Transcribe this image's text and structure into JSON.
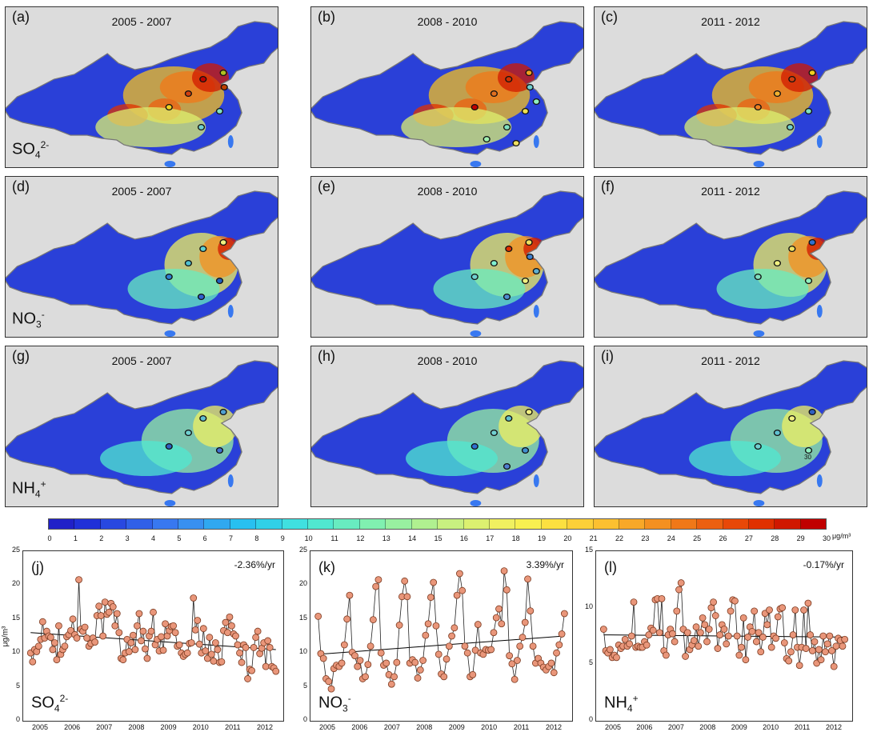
{
  "maps": [
    {
      "label": "(a)",
      "period": "2005 - 2007",
      "species": {
        "base": "SO",
        "sub": "4",
        "sup": "2-"
      },
      "showSpecies": true,
      "kind": "so4",
      "sites": [
        "#c00000",
        "#d04010",
        "#b0c020",
        "#f0d020",
        "#80e0c0",
        "#70d0d0",
        "#c04000"
      ]
    },
    {
      "label": "(b)",
      "period": "2008 - 2010",
      "kind": "so4",
      "sites": [
        "#d03000",
        "#e07020",
        "#f0a020",
        "#c00000",
        "#f0e050",
        "#80e0c0",
        "#70d0d0",
        "#90f0c0",
        "#f0e060",
        "#a0f0b0"
      ]
    },
    {
      "label": "(c)",
      "period": "2011 - 2012",
      "kind": "so4",
      "sites": [
        "#d04010",
        "#f0b030",
        "#f0d020",
        "#f08020",
        "#80e0c0",
        "#70d0d0"
      ]
    },
    {
      "label": "(d)",
      "period": "2005 - 2007",
      "species": {
        "base": "NO",
        "sub": "3",
        "sup": "-"
      },
      "showSpecies": true,
      "kind": "no3",
      "sites": [
        "#60d0d0",
        "#50c0d0",
        "#f0f080",
        "#3080d0",
        "#2060c0",
        "#3060d0"
      ]
    },
    {
      "label": "(e)",
      "period": "2008 - 2010",
      "kind": "no3",
      "sites": [
        "#e03000",
        "#80f0d0",
        "#f0e060",
        "#70d0d0",
        "#f0f080",
        "#5090d0",
        "#4080d0",
        "#60b0d0"
      ]
    },
    {
      "label": "(f)",
      "period": "2011 - 2012",
      "kind": "no3",
      "sites": [
        "#f0e060",
        "#f0f080",
        "#3070d0",
        "#80e0c0",
        "#90f0c0"
      ]
    },
    {
      "label": "(g)",
      "period": "2005 - 2007",
      "species": {
        "base": "NH",
        "sub": "4",
        "sup": "+"
      },
      "showSpecies": true,
      "kind": "nh4",
      "sites": [
        "#60c0d0",
        "#70d0d0",
        "#50a0d0",
        "#3060c0",
        "#4070d0"
      ]
    },
    {
      "label": "(h)",
      "period": "2008 - 2010",
      "kind": "nh4",
      "sites": [
        "#60c0d0",
        "#70d0d0",
        "#f0f080",
        "#3070d0",
        "#4090d0",
        "#5080d0"
      ]
    },
    {
      "label": "(i)",
      "period": "2011 - 2012",
      "kind": "nh4",
      "sites": [
        "#f0f080",
        "#60c0d0",
        "#3060c0",
        "#70d0d0",
        "#90f0c0"
      ],
      "note": "30"
    }
  ],
  "colorbar": {
    "ticks": [
      "0",
      "1",
      "2",
      "3",
      "4",
      "5",
      "6",
      "7",
      "8",
      "9",
      "10",
      "11",
      "12",
      "13",
      "14",
      "15",
      "16",
      "17",
      "18",
      "19",
      "20",
      "21",
      "22",
      "23",
      "24",
      "25",
      "26",
      "27",
      "28",
      "29",
      "30"
    ],
    "colors": [
      "#2020c8",
      "#2030d8",
      "#2848e0",
      "#3060e8",
      "#3878f0",
      "#3890f0",
      "#30a8f0",
      "#28c0f0",
      "#30d0e8",
      "#40e0e0",
      "#50e8d0",
      "#68ecc0",
      "#80f0b0",
      "#98f0a0",
      "#b0f090",
      "#c8f080",
      "#dcf070",
      "#f0f060",
      "#f8f050",
      "#fce040",
      "#fcd038",
      "#fcc030",
      "#f8a828",
      "#f49020",
      "#f07818",
      "#ec6010",
      "#e84808",
      "#e03000",
      "#d01800",
      "#c00000"
    ],
    "unit": "μg/m³"
  },
  "chart_data": [
    {
      "type": "scatter",
      "label": "(j)",
      "species": {
        "base": "SO",
        "sub": "4",
        "sup": "2-"
      },
      "trend": "-2.36%/yr",
      "ylabel": "μg/m³",
      "ylim": [
        0,
        25
      ],
      "yticks": [
        "0",
        "5",
        "10",
        "15",
        "20",
        "25"
      ],
      "xticks": [
        "2005",
        "2006",
        "2007",
        "2008",
        "2009",
        "2010",
        "2011",
        "2012"
      ],
      "trendline": [
        13.0,
        10.5
      ],
      "values": [
        10,
        8.7,
        10.5,
        10.2,
        11,
        12,
        14.6,
        12.2,
        13.2,
        12.5,
        12.3,
        10.5,
        11.5,
        9,
        14,
        9.8,
        10.5,
        11,
        12.4,
        12.7,
        13.3,
        15,
        12.7,
        12.2,
        20.8,
        13.5,
        13.2,
        13.8,
        12.2,
        11,
        11.4,
        12.2,
        11.6,
        15.5,
        16.9,
        15.5,
        12.5,
        17.5,
        15.7,
        16,
        17.3,
        16.8,
        14,
        15.8,
        13,
        9.2,
        9,
        10,
        12,
        10.2,
        11.5,
        12.6,
        10.5,
        14,
        15.8,
        11.8,
        13.2,
        10.6,
        9.2,
        12.5,
        13.2,
        16,
        11.2,
        12,
        10.3,
        12.4,
        10.4,
        14.3,
        12.5,
        13.3,
        13.9,
        14,
        13,
        11,
        11.2,
        10,
        9.5,
        9.8,
        10,
        11.4,
        11.5,
        18.1,
        13.4,
        14.8,
        11.3,
        10,
        13.6,
        10.3,
        9.2,
        12.3,
        9.8,
        8.8,
        11.5,
        10.5,
        8.6,
        8.7,
        13.3,
        14.5,
        13,
        15.3,
        14,
        12.8,
        12.5,
        11.2,
        10,
        8.6,
        11.2,
        10.8,
        6.2,
        7.6,
        7.4,
        10.8,
        12.3,
        13.2,
        9.9,
        10.7,
        11.5,
        8,
        11.8,
        10.8,
        8,
        7.8,
        7.3
      ]
    },
    {
      "type": "scatter",
      "label": "(k)",
      "species": {
        "base": "NO",
        "sub": "3",
        "sup": "-"
      },
      "trend": "3.39%/yr",
      "ylim": [
        0,
        25
      ],
      "yticks": [
        "0",
        "5",
        "10",
        "15",
        "20",
        "25"
      ],
      "xticks": [
        "2005",
        "2006",
        "2007",
        "2008",
        "2009",
        "2010",
        "2011",
        "2012"
      ],
      "trendline": [
        9.8,
        12.5
      ],
      "values": [
        15.4,
        9.9,
        9.2,
        6.2,
        5.8,
        4.7,
        7.7,
        8.2,
        8,
        8.5,
        11.2,
        15,
        18.5,
        10.1,
        9.6,
        8,
        8.9,
        6.2,
        6.5,
        8.3,
        11,
        14.9,
        19.8,
        20.8,
        10,
        8.2,
        8.5,
        6.8,
        5.4,
        6.5,
        8.6,
        14.1,
        18.3,
        20.6,
        18.3,
        8.5,
        9,
        8.6,
        6.3,
        7.5,
        8.9,
        12.6,
        14.3,
        18.2,
        20.4,
        14,
        9.8,
        6.9,
        6.5,
        9.1,
        11,
        12.5,
        13.7,
        18.5,
        21.7,
        19.2,
        11,
        10,
        6.5,
        6.8,
        10.4,
        14.2,
        10,
        9.8,
        10.5,
        10.4,
        10.5,
        13,
        15.2,
        16.5,
        14.3,
        22.1,
        19.3,
        9.6,
        8.4,
        6.1,
        8.9,
        11,
        12.3,
        14.5,
        20.9,
        16.2,
        11,
        8.5,
        9.2,
        8.5,
        7.9,
        7.5,
        8,
        8.5,
        7.1,
        10,
        11.2,
        12.8,
        15.8
      ]
    },
    {
      "type": "scatter",
      "label": "(l)",
      "species": {
        "base": "NH",
        "sub": "4",
        "sup": "+"
      },
      "trend": "-0.17%/yr",
      "ylim": [
        0,
        15
      ],
      "yticks": [
        "0",
        "5",
        "10",
        "15"
      ],
      "xticks": [
        "2005",
        "2006",
        "2007",
        "2008",
        "2009",
        "2010",
        "2011",
        "2012"
      ],
      "trendline": [
        7.6,
        7.4
      ],
      "values": [
        8.1,
        6.2,
        6,
        6.3,
        5.6,
        5.8,
        5.6,
        6.7,
        6.4,
        6.6,
        7.2,
        6.6,
        6.8,
        7.5,
        10.5,
        6.5,
        6.6,
        6.5,
        6.5,
        7,
        6.7,
        7.6,
        8.2,
        8,
        10.7,
        10.8,
        7.8,
        10.8,
        6.2,
        5.8,
        7.6,
        8.1,
        7.7,
        7,
        9.7,
        11.6,
        12.2,
        8.1,
        5.7,
        7.8,
        6.3,
        6.7,
        7.1,
        8.3,
        6.6,
        7.8,
        9.1,
        8.5,
        7,
        8.1,
        10,
        10.5,
        9.3,
        6.4,
        7.6,
        8.5,
        8.1,
        6.8,
        7.5,
        9.7,
        10.7,
        10.6,
        7.5,
        5.8,
        6.5,
        9.1,
        5.4,
        7.4,
        8.3,
        7.9,
        9.7,
        7,
        7.8,
        6.1,
        7.4,
        9.5,
        8.5,
        9.8,
        6.5,
        7.5,
        7.3,
        9.2,
        9.9,
        10,
        6.9,
        5.5,
        5.3,
        6.1,
        7.6,
        9.8,
        6.5,
        4.9,
        6.5,
        9.8,
        6.4,
        10.4,
        7.6,
        6.2,
        7,
        5.1,
        6.3,
        5.4,
        7.5,
        6.1,
        6.8,
        7.5,
        6.2,
        4.8,
        6.6,
        7.3,
        7.1,
        6.6,
        7.2
      ]
    }
  ]
}
